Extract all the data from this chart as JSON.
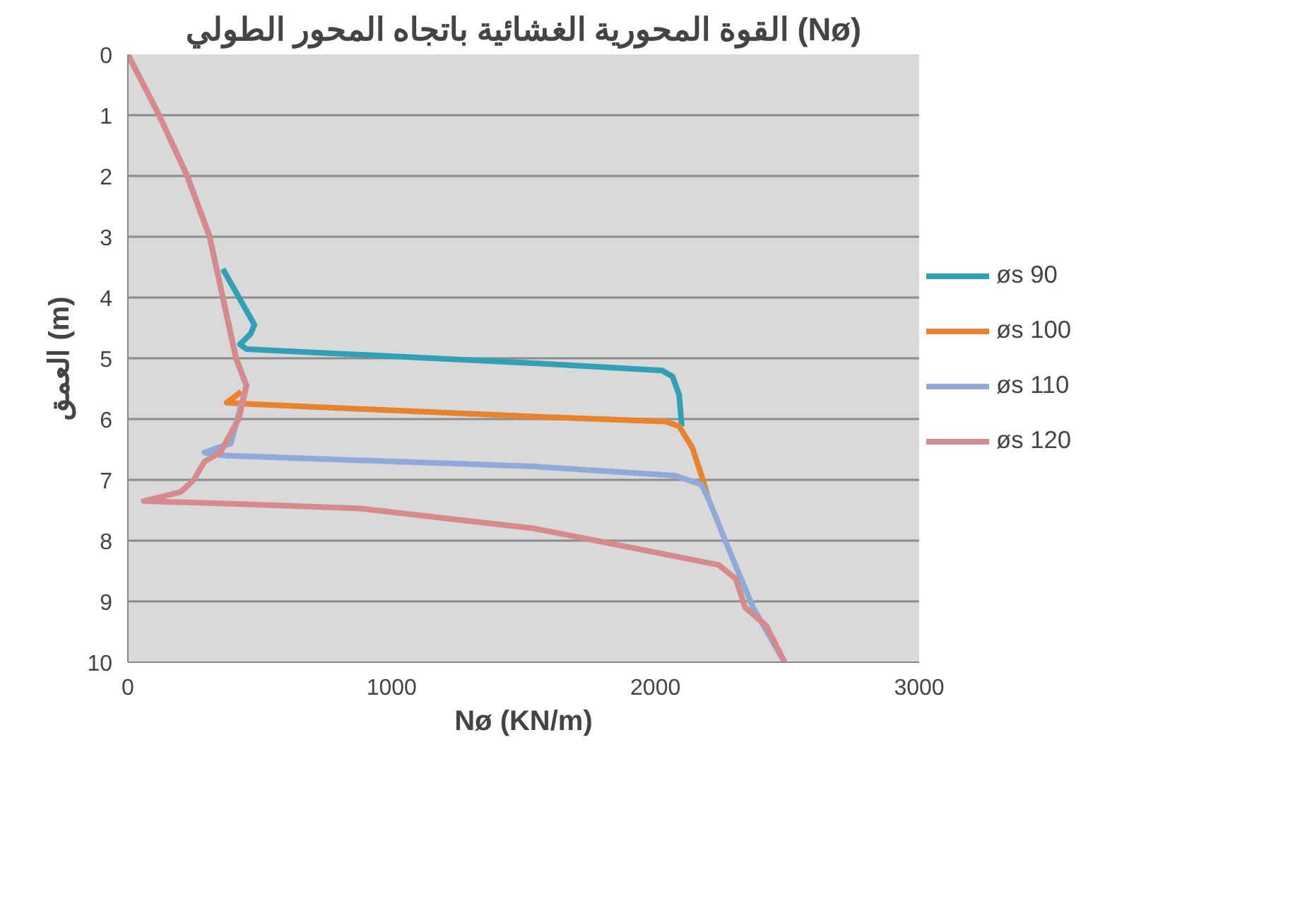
{
  "chart_data": {
    "type": "line",
    "title": "القوة المحورية الغشائية باتجاه المحور الطولي (Nø)",
    "xlabel": "Nø (KN/m)",
    "ylabel": "العمق (m)",
    "xlim": [
      0,
      3000
    ],
    "xticks": [
      0,
      1000,
      2000,
      3000
    ],
    "ylim": [
      10,
      0
    ],
    "yticks": [
      0,
      1,
      2,
      3,
      4,
      5,
      6,
      7,
      8,
      9,
      10
    ],
    "grid": "y",
    "legend": "right",
    "line_style": "solid",
    "marker": "none",
    "series": [
      {
        "name": "øs 90",
        "color": "#31a0b5",
        "x": [
          360,
          480,
          465,
          425,
          450,
          1540,
          2025,
          2065,
          2090,
          2100
        ],
        "values": [
          3.53,
          4.45,
          4.6,
          4.77,
          4.85,
          5.08,
          5.2,
          5.3,
          5.6,
          6.12
        ]
      },
      {
        "name": "øs 100",
        "color": "#e8822d",
        "x": [
          430,
          375,
          450,
          1540,
          2040,
          2090,
          2140,
          2180,
          2200
        ],
        "values": [
          5.55,
          5.73,
          5.75,
          5.96,
          6.04,
          6.12,
          6.47,
          7.0,
          7.3
        ]
      },
      {
        "name": "øs 110",
        "color": "#8fa9d8",
        "x": [
          0,
          115,
          225,
          310,
          360,
          410,
          450,
          415,
          390,
          290,
          365,
          1540,
          2075,
          2175,
          2200,
          2265,
          2370,
          2490
        ],
        "values": [
          0,
          0.97,
          2,
          3,
          4,
          5,
          5.45,
          6,
          6.4,
          6.55,
          6.6,
          6.78,
          6.93,
          7.08,
          7.3,
          8.0,
          9.1,
          10
        ]
      },
      {
        "name": "øs 120",
        "color": "#d68a8c",
        "x": [
          0,
          115,
          225,
          310,
          360,
          410,
          450,
          420,
          350,
          290,
          250,
          200,
          60,
          450,
          880,
          1540,
          1775,
          2240,
          2305,
          2340,
          2420,
          2490
        ],
        "values": [
          0,
          0.97,
          2,
          3,
          4,
          5,
          5.45,
          6,
          6.55,
          6.7,
          7.0,
          7.2,
          7.35,
          7.4,
          7.47,
          7.8,
          8.0,
          8.4,
          8.63,
          9.1,
          9.4,
          10
        ]
      }
    ]
  }
}
